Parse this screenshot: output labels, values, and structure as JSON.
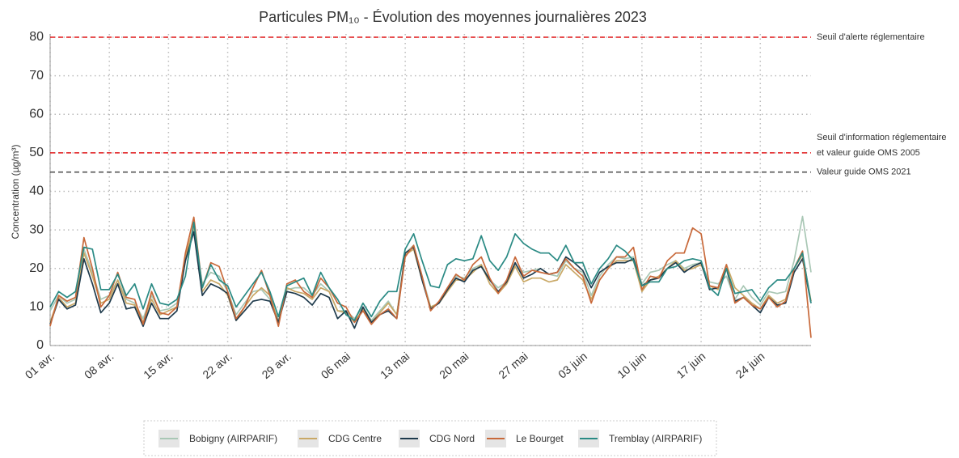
{
  "chart_data": {
    "type": "line",
    "title": "Particules PM₁₀ - Évolution des moyennes journalières 2023",
    "y_label": "Concentration (µg/m³)",
    "categories": [
      "01 avr.",
      null,
      null,
      null,
      null,
      null,
      null,
      "08 avr.",
      null,
      null,
      null,
      null,
      null,
      null,
      "15 avr.",
      null,
      null,
      null,
      null,
      null,
      null,
      "22 avr.",
      null,
      null,
      null,
      null,
      null,
      null,
      "29 avr.",
      null,
      null,
      null,
      null,
      null,
      null,
      "06 mai",
      null,
      null,
      null,
      null,
      null,
      null,
      "13 mai",
      null,
      null,
      null,
      null,
      null,
      null,
      "20 mai",
      null,
      null,
      null,
      null,
      null,
      null,
      "27 mai",
      null,
      null,
      null,
      null,
      null,
      null,
      "03 juin",
      null,
      null,
      null,
      null,
      null,
      null,
      "10 juin",
      null,
      null,
      null,
      null,
      null,
      null,
      "17 juin",
      null,
      null,
      null,
      null,
      null,
      null,
      "24 juin",
      null,
      null,
      null,
      null,
      null,
      null
    ],
    "ylim": [
      0,
      80
    ],
    "yticks": [
      0,
      10,
      20,
      30,
      40,
      50,
      60,
      70,
      80
    ],
    "grid": true,
    "series": [
      {
        "name": "Bobigny (AIRPARIF)",
        "color": "#a9c7b5",
        "values": [
          9,
          13,
          11,
          12,
          25,
          19,
          12,
          13,
          17,
          12,
          11,
          7,
          13,
          9,
          9.5,
          11,
          22,
          30,
          16,
          19,
          18,
          14,
          8,
          11,
          14,
          14.5,
          12,
          6.5,
          14.5,
          15,
          15,
          13,
          16,
          14,
          9,
          9,
          7,
          10,
          6.5,
          9,
          11.5,
          8,
          24,
          26,
          18,
          10,
          11,
          15,
          18,
          17.5,
          20,
          21,
          17,
          15,
          16.5,
          21,
          19,
          19.5,
          20,
          18.5,
          18,
          22,
          20,
          19,
          13,
          18,
          21,
          23,
          22.5,
          23,
          16,
          19,
          19.5,
          21,
          22,
          20,
          21,
          21.5,
          16.5,
          16,
          18,
          12,
          15.5,
          12.5,
          10.5,
          14,
          13.5,
          14,
          22,
          33.5,
          19
        ]
      },
      {
        "name": "CDG Centre",
        "color": "#c9a866",
        "values": [
          6,
          12.5,
          10,
          11,
          24,
          18,
          11,
          12,
          17,
          11,
          10.5,
          6,
          12,
          8,
          9,
          10,
          23,
          31,
          14,
          17,
          16,
          13,
          6.5,
          10,
          13,
          15,
          13,
          6,
          15,
          14,
          13.5,
          12,
          15,
          14,
          9,
          8.5,
          6,
          9.5,
          6,
          8.5,
          11,
          8,
          23.5,
          25,
          17,
          10,
          11,
          14,
          17,
          17,
          19,
          21,
          16,
          13.5,
          16,
          20.5,
          16.5,
          17.5,
          17.5,
          16.5,
          17,
          21,
          19,
          17,
          12,
          17,
          20,
          22,
          22,
          22,
          14,
          17,
          18,
          20,
          22,
          19.5,
          20,
          21,
          15.5,
          14.5,
          21,
          15,
          13,
          11,
          9.5,
          13,
          11,
          12,
          20,
          23.5,
          11.5
        ]
      },
      {
        "name": "CDG Nord",
        "color": "#1e3a4c",
        "values": [
          5.5,
          12,
          9.5,
          10.5,
          22.5,
          16,
          8.5,
          11,
          16,
          9.5,
          10,
          5,
          11,
          7,
          7,
          9,
          22,
          29.5,
          13,
          16,
          15,
          13.5,
          6.5,
          9,
          11.5,
          12,
          11.5,
          6,
          14,
          13.5,
          12.5,
          10.5,
          13.5,
          12.5,
          7,
          9,
          4.5,
          10,
          6,
          8,
          9,
          7,
          24,
          25.5,
          17,
          9.5,
          11,
          14.5,
          17.5,
          16.5,
          19.5,
          20.5,
          17,
          14,
          16.5,
          21.5,
          17.5,
          18.5,
          20,
          18.5,
          19,
          23,
          21.5,
          19.5,
          15,
          19,
          20.5,
          21.5,
          21.5,
          22.5,
          15.5,
          17,
          17.5,
          20,
          21.5,
          19,
          20.5,
          21.5,
          14.5,
          15,
          20,
          11.5,
          12.5,
          10.5,
          8.5,
          12.5,
          10.5,
          11,
          19,
          22.5,
          11
        ]
      },
      {
        "name": "Le Bourget",
        "color": "#c8693a",
        "values": [
          5,
          13,
          11.5,
          12.5,
          28,
          20,
          10,
          13,
          19,
          12.5,
          12,
          5.5,
          14,
          8.5,
          8,
          10,
          24,
          33.3,
          15,
          21.5,
          20.5,
          14,
          7,
          10,
          15,
          19.5,
          13,
          5,
          16,
          17,
          14,
          12.5,
          17.5,
          15,
          11,
          10,
          6,
          9,
          5.5,
          8,
          9.5,
          7,
          23,
          26,
          18,
          9,
          11.5,
          15,
          18.5,
          17,
          21,
          23,
          17.5,
          13.5,
          17,
          23,
          18,
          19.5,
          19,
          18.5,
          19,
          22.5,
          20,
          18,
          11,
          17,
          20,
          23,
          23,
          25.5,
          14.5,
          18,
          17.5,
          22,
          24,
          24,
          30.5,
          29,
          15.5,
          15,
          21,
          11,
          12.5,
          10.5,
          9.5,
          12.5,
          10,
          11.5,
          20,
          24.5,
          2
        ]
      },
      {
        "name": "Tremblay (AIRPARIF)",
        "color": "#2a8a84",
        "values": [
          10,
          14,
          12.5,
          14,
          25.5,
          25,
          14.5,
          14.5,
          18.5,
          13,
          16,
          9.5,
          16,
          11,
          10.5,
          12,
          18,
          32,
          15,
          21,
          17,
          15.5,
          10,
          13,
          16,
          19,
          14,
          7.5,
          15.5,
          16.5,
          17.5,
          13,
          19,
          15,
          12,
          8,
          6.5,
          11,
          7.5,
          11.5,
          14,
          14,
          25,
          29,
          22,
          15.5,
          15,
          21,
          22.5,
          22,
          22.5,
          28.5,
          22,
          19.5,
          23,
          29,
          26.5,
          25,
          24,
          24,
          22,
          26,
          21.5,
          21.5,
          16,
          20,
          22.5,
          26,
          24.5,
          22,
          15.5,
          16.5,
          16.5,
          20,
          20.5,
          22,
          22.5,
          22,
          15,
          13,
          20,
          13.5,
          14,
          14.5,
          11.5,
          15,
          17,
          17,
          20,
          24,
          11
        ]
      }
    ],
    "reference_lines": [
      {
        "value": 80,
        "color": "#e31a1c",
        "labels": [
          {
            "text": "Seuil d'alerte réglementaire",
            "color": "#e31a1c"
          }
        ]
      },
      {
        "value": 50,
        "color": "#e31a1c",
        "labels": [
          {
            "text": "Seuil d'information réglementaire",
            "color": "#e31a1c"
          },
          {
            "text": "et valeur guide OMS 2005",
            "color": "#555555"
          }
        ]
      },
      {
        "value": 45,
        "color": "#555555",
        "labels": [
          {
            "text": "Valeur guide OMS 2021",
            "color": "#555555"
          }
        ]
      }
    ]
  }
}
